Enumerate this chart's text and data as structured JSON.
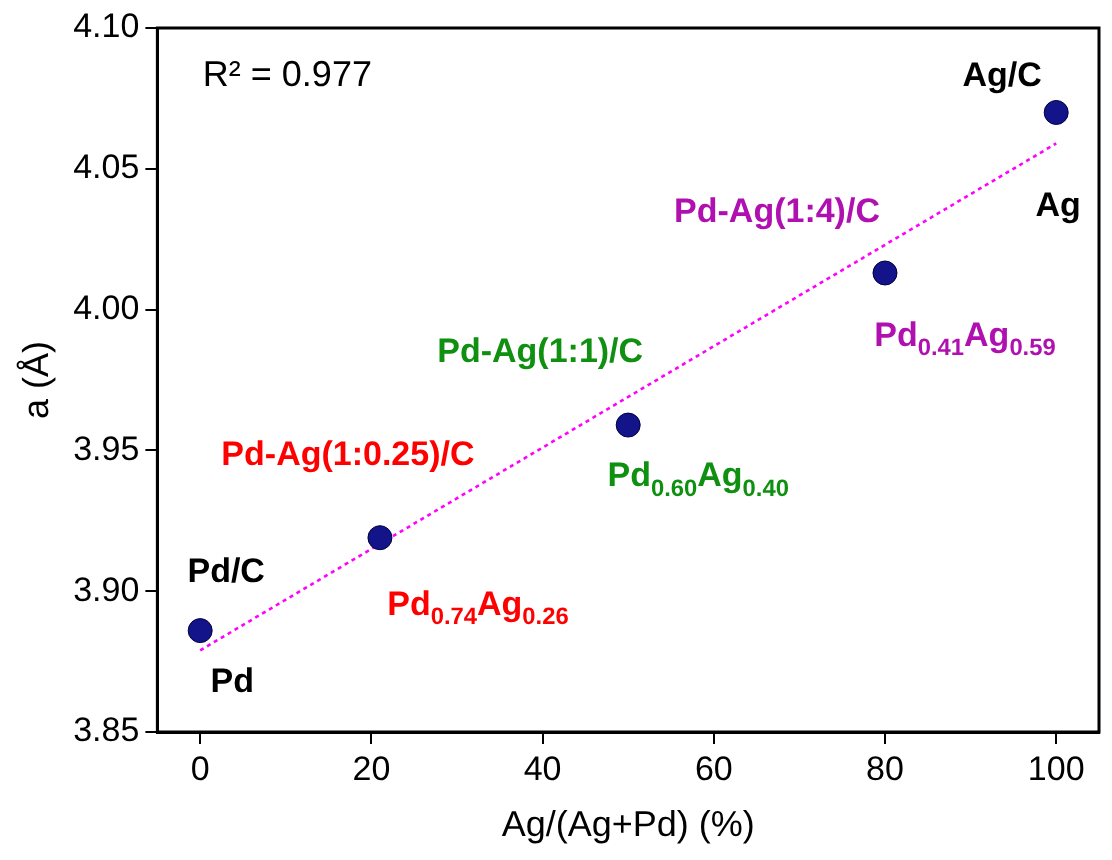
{
  "chart_data": {
    "type": "scatter",
    "xlabel": "Ag/(Ag+Pd) (%)",
    "ylabel": "a (Å)",
    "xlim": [
      -5,
      105
    ],
    "xticks": [
      0,
      20,
      40,
      60,
      80,
      100
    ],
    "ylim": [
      3.85,
      4.1
    ],
    "yticks": [
      3.85,
      {
        "value": 3.9,
        "label": "3.90"
      },
      3.95,
      {
        "value": 4.0,
        "label": "4.00"
      },
      4.05,
      {
        "value": 4.1,
        "label": "4.10"
      }
    ],
    "grid": false,
    "legend": false,
    "marker": "circle",
    "series": [
      {
        "type": "scatter",
        "color": "#14148a",
        "x": [
          0,
          21,
          50,
          80,
          100
        ],
        "values": [
          3.886,
          3.919,
          3.959,
          4.013,
          4.07
        ]
      },
      {
        "type": "line",
        "color": "#ff00ff",
        "line_style": "dotted",
        "marker": "none",
        "x": [
          0,
          100
        ],
        "values": [
          3.879,
          4.059
        ]
      }
    ],
    "annotations": [
      "R² = 0.977",
      {
        "text": "Ag/C",
        "x": 100,
        "y": 4.07
      },
      {
        "text": "Ag",
        "x": 100,
        "y": 4.07
      },
      {
        "text": "Pd-Ag(1:4)/C",
        "x": 80,
        "y": 4.013
      },
      {
        "text": "Pd$_{0.41}$Ag$_{0.59}$",
        "x": 80,
        "y": 4.013
      },
      {
        "text": "Pd-Ag(1:1)/C",
        "x": 50,
        "y": 3.959
      },
      {
        "text": "Pd$_{0.60}$Ag$_{0.40}$",
        "x": 50,
        "y": 3.959
      },
      {
        "text": "Pd-Ag(1:0.25)/C",
        "x": 21,
        "y": 3.919
      },
      {
        "text": "Pd$_{0.74}$Ag$_{0.26}$",
        "x": 21,
        "y": 3.919
      },
      {
        "text": "Pd/C",
        "x": 0,
        "y": 3.886
      },
      {
        "text": "Pd",
        "x": 0,
        "y": 3.886
      }
    ]
  }
}
